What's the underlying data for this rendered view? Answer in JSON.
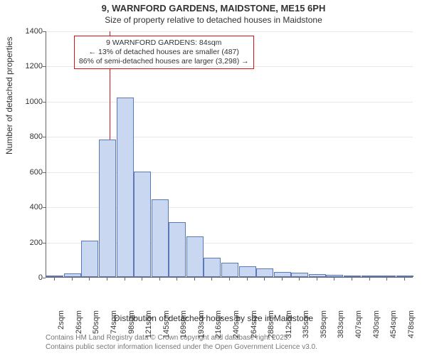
{
  "title1": "9, WARNFORD GARDENS, MAIDSTONE, ME15 6PH",
  "title2": "Size of property relative to detached houses in Maidstone",
  "ylabel": "Number of detached properties",
  "xlabel": "Distribution of detached houses by size in Maidstone",
  "footer_line1": "Contains HM Land Registry data © Crown copyright and database right 2025.",
  "footer_line2": "Contains public sector information licensed under the Open Government Licence v3.0.",
  "chart": {
    "type": "histogram",
    "background_color": "#ffffff",
    "bar_fill": "#c9d8f0",
    "bar_border": "#5a79b8",
    "axis_color": "#666666",
    "marker_color": "#dd1111",
    "label_fontsize": 12,
    "tick_fontsize": 11,
    "title_fontsize": 13,
    "y": {
      "min": 0,
      "max": 1400,
      "step": 200
    },
    "x_ticks": [
      "2sqm",
      "26sqm",
      "50sqm",
      "74sqm",
      "98sqm",
      "121sqm",
      "145sqm",
      "169sqm",
      "193sqm",
      "216sqm",
      "240sqm",
      "264sqm",
      "288sqm",
      "312sqm",
      "335sqm",
      "359sqm",
      "383sqm",
      "407sqm",
      "430sqm",
      "454sqm",
      "478sqm"
    ],
    "bars": [
      10,
      20,
      205,
      780,
      1020,
      600,
      440,
      310,
      230,
      110,
      80,
      60,
      50,
      30,
      25,
      18,
      12,
      8,
      5,
      3,
      2
    ],
    "marker_x_sqm": 84,
    "x_sqm_min": 2,
    "x_sqm_max": 478,
    "annotation": {
      "line1": "9 WARNFORD GARDENS: 84sqm",
      "line2": "← 13% of detached houses are smaller (487)",
      "line3": "86% of semi-detached houses are larger (3,298) →"
    }
  }
}
